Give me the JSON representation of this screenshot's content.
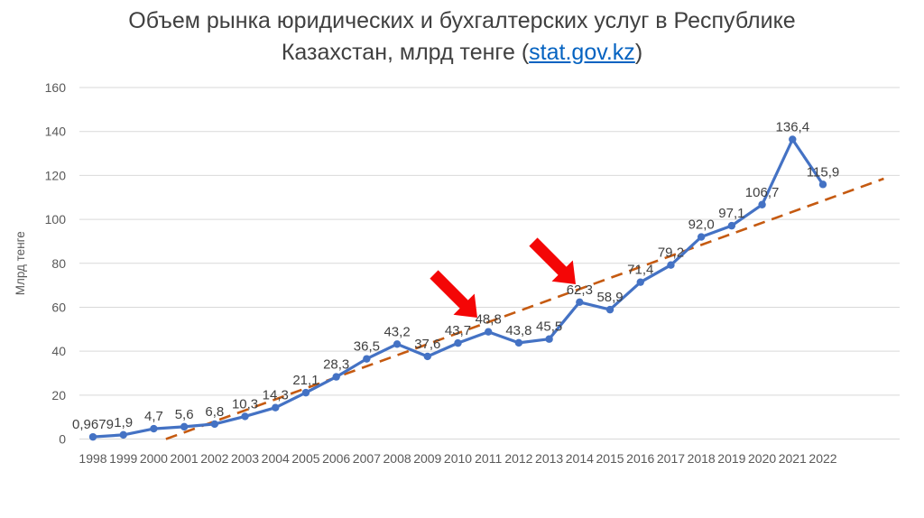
{
  "title": {
    "line1": "Объем рынка юридических и бухгалтерских услуг в Республике",
    "line2_prefix": "Казахстан, млрд тенге (",
    "link": "stat.gov.kz",
    "line2_suffix": ")"
  },
  "chart_data": {
    "type": "line",
    "title": "Объем рынка юридических и бухгалтерских услуг в Республике Казахстан, млрд тенге (stat.gov.kz)",
    "ylabel": "Млрд тенге",
    "xlabel": "",
    "ylim": [
      0,
      160
    ],
    "ytick_step": 20,
    "yticks": [
      0,
      20,
      40,
      60,
      80,
      100,
      120,
      140,
      160
    ],
    "grid": true,
    "legend": "none",
    "x": [
      1998,
      1999,
      2000,
      2001,
      2002,
      2003,
      2004,
      2005,
      2006,
      2007,
      2008,
      2009,
      2010,
      2011,
      2012,
      2013,
      2014,
      2015,
      2016,
      2017,
      2018,
      2019,
      2020,
      2021,
      2022
    ],
    "series": [
      {
        "values": [
          0.9679,
          1.9,
          4.7,
          5.6,
          6.8,
          10.3,
          14.3,
          21.1,
          28.3,
          36.5,
          43.2,
          37.6,
          43.7,
          48.8,
          43.8,
          45.5,
          62.3,
          58.9,
          71.4,
          79.2,
          92.0,
          97.1,
          106.7,
          136.4,
          115.9
        ],
        "data_labels": [
          "0,9679",
          "1,9",
          "4,7",
          "5,6",
          "6,8",
          "10,3",
          "14,3",
          "21,1",
          "28,3",
          "36,5",
          "43,2",
          "37,6",
          "43,7",
          "48,8",
          "43,8",
          "45,5",
          "62,3",
          "58,9",
          "71,4",
          "79,2",
          "92,0",
          "97,1",
          "106,7",
          "136,4",
          "115,9"
        ]
      }
    ],
    "trendline": {
      "style": "dashed",
      "x1": 2000.4,
      "y1": 0,
      "x2": 2024.0,
      "y2": 118.5
    },
    "annotations": [
      {
        "type": "arrow",
        "points_to_year": 2011,
        "points_to_label": "48,8"
      },
      {
        "type": "arrow",
        "points_to_year": 2014,
        "points_to_label": "62,3"
      }
    ]
  },
  "colors": {
    "background": "#FFFFFF",
    "title_text": "#404040",
    "link": "#0563C1",
    "axis_text": "#595959",
    "gridline": "#D9D9D9",
    "series_line": "#4472C4",
    "trendline": "#C55A11",
    "data_label": "#404040",
    "arrow": "#F40606"
  }
}
